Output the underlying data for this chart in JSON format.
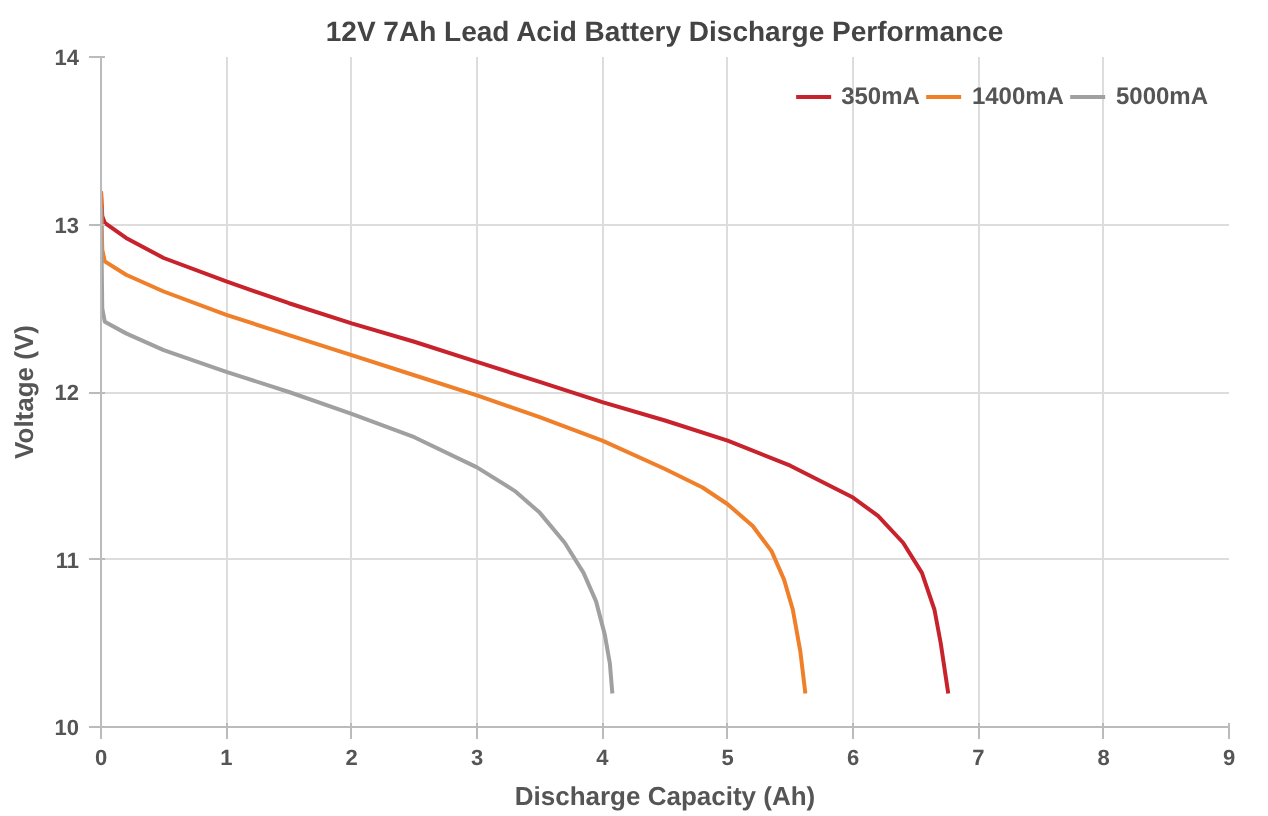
{
  "chart_data": {
    "type": "line",
    "title": "12V 7Ah Lead Acid Battery Discharge Performance",
    "xlabel": "Discharge Capacity (Ah)",
    "ylabel": "Voltage (V)",
    "xlim": [
      0,
      9
    ],
    "xticks": [
      0,
      1,
      2,
      3,
      4,
      5,
      6,
      7,
      8,
      9
    ],
    "ylim": [
      10,
      14
    ],
    "yticks": [
      10,
      11,
      12,
      13,
      14
    ],
    "grid": true,
    "legend": "top right",
    "marker": "none",
    "line_style": "solid",
    "series": [
      {
        "name": "350mA",
        "color": "#c8232c",
        "x": [
          0,
          0.01,
          0.03,
          0.2,
          0.5,
          1,
          1.5,
          2,
          2.5,
          3,
          3.5,
          4,
          4.5,
          5,
          5.5,
          6,
          6.2,
          6.4,
          6.55,
          6.65,
          6.7,
          6.76
        ],
        "values": [
          13.2,
          13.05,
          13.01,
          12.92,
          12.8,
          12.66,
          12.53,
          12.41,
          12.3,
          12.18,
          12.06,
          11.94,
          11.83,
          11.71,
          11.56,
          11.37,
          11.26,
          11.1,
          10.92,
          10.7,
          10.5,
          10.2
        ]
      },
      {
        "name": "1400mA",
        "color": "#f07f2a",
        "x": [
          0,
          0.01,
          0.03,
          0.2,
          0.5,
          1,
          1.5,
          2,
          2.5,
          3,
          3.5,
          4,
          4.5,
          4.8,
          5,
          5.2,
          5.35,
          5.45,
          5.52,
          5.58,
          5.62
        ],
        "values": [
          13.2,
          12.85,
          12.78,
          12.7,
          12.6,
          12.46,
          12.34,
          12.22,
          12.1,
          11.98,
          11.85,
          11.71,
          11.54,
          11.43,
          11.33,
          11.2,
          11.05,
          10.88,
          10.7,
          10.45,
          10.2
        ]
      },
      {
        "name": "5000mA",
        "color": "#a0a0a0",
        "x": [
          0,
          0.01,
          0.03,
          0.2,
          0.5,
          1,
          1.5,
          2,
          2.5,
          3,
          3.3,
          3.5,
          3.7,
          3.85,
          3.95,
          4.02,
          4.06,
          4.08
        ],
        "values": [
          13.1,
          12.5,
          12.42,
          12.35,
          12.25,
          12.12,
          12.0,
          11.87,
          11.73,
          11.55,
          11.41,
          11.28,
          11.1,
          10.92,
          10.75,
          10.55,
          10.38,
          10.2
        ]
      }
    ]
  }
}
